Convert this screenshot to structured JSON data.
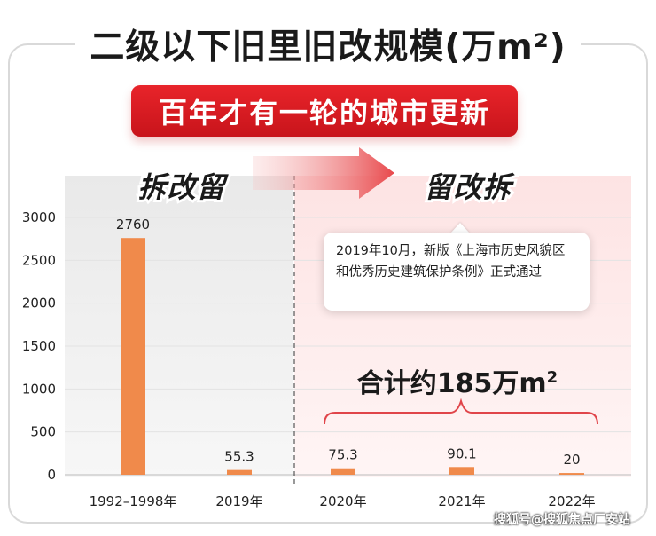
{
  "title": "二级以下旧里旧改规模(万m²)",
  "subtitle": "百年才有一轮的城市更新",
  "phases": {
    "before": "拆改留",
    "after": "留改拆"
  },
  "callout": {
    "text": "2019年10月，新版《上海市历史风貌区和优秀历史建筑保护条例》正式通过"
  },
  "total": {
    "text": "合计约185万m",
    "superscript": "2"
  },
  "watermark": "搜狐号@搜狐焦点厂安站",
  "colors": {
    "bar": "#f08a4b",
    "banner": "#d91c22",
    "arrow": "#e8484b",
    "brace": "#e0454a",
    "after_bg": "#fdecec",
    "before_bg": "#efefef"
  },
  "chart_data": {
    "type": "bar",
    "categories": [
      "1992–1998年",
      "2019年",
      "2020年",
      "2021年",
      "2022年"
    ],
    "values": [
      2760,
      55.3,
      75.3,
      90.1,
      20
    ],
    "value_labels": [
      "2760",
      "55.3",
      "75.3",
      "90.1",
      "20"
    ],
    "ylim": [
      0,
      3000
    ],
    "yticks": [
      0,
      500,
      1000,
      1500,
      2000,
      2500,
      3000
    ],
    "grid": true,
    "legend": "none"
  }
}
